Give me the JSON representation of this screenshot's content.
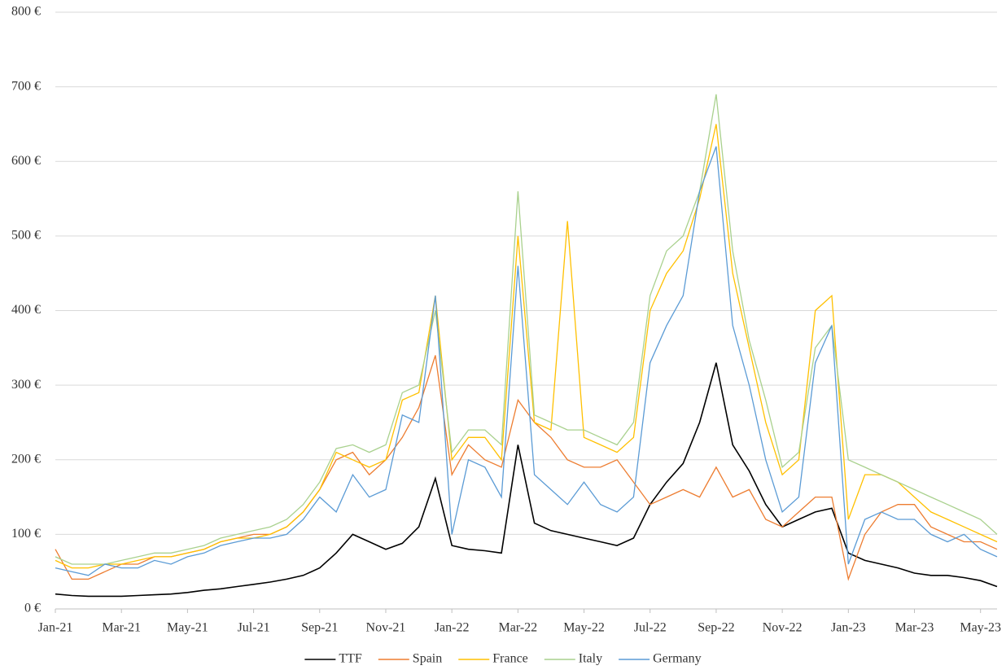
{
  "chart_data": {
    "type": "line",
    "categories": [
      "Jan-21",
      null,
      null,
      null,
      "Mar-21",
      null,
      null,
      null,
      "May-21",
      null,
      null,
      null,
      "Jul-21",
      null,
      null,
      null,
      "Sep-21",
      null,
      null,
      null,
      "Nov-21",
      null,
      null,
      null,
      "Jan-22",
      null,
      null,
      null,
      "Mar-22",
      null,
      null,
      null,
      "May-22",
      null,
      null,
      null,
      "Jul-22",
      null,
      null,
      null,
      "Sep-22",
      null,
      null,
      null,
      "Nov-22",
      null,
      null,
      null,
      "Jan-23",
      null,
      null,
      null,
      "Mar-23",
      null,
      null,
      null,
      "May-23",
      null
    ],
    "series": [
      {
        "name": "TTF",
        "color": "#000000",
        "values": [
          20,
          18,
          17,
          17,
          17,
          18,
          19,
          20,
          22,
          25,
          27,
          30,
          33,
          36,
          40,
          45,
          55,
          75,
          100,
          90,
          80,
          88,
          110,
          175,
          85,
          80,
          78,
          75,
          220,
          115,
          105,
          100,
          95,
          90,
          85,
          95,
          140,
          170,
          195,
          250,
          330,
          220,
          185,
          140,
          110,
          120,
          130,
          135,
          75,
          65,
          60,
          55,
          48,
          45,
          45,
          42,
          38,
          30
        ]
      },
      {
        "name": "Spain",
        "color": "#ed7d31",
        "values": [
          80,
          40,
          40,
          50,
          60,
          60,
          70,
          70,
          75,
          80,
          90,
          95,
          100,
          100,
          110,
          130,
          160,
          200,
          210,
          180,
          200,
          230,
          270,
          340,
          180,
          220,
          200,
          190,
          280,
          250,
          230,
          200,
          190,
          190,
          200,
          170,
          140,
          150,
          160,
          150,
          190,
          150,
          160,
          120,
          110,
          130,
          150,
          150,
          40,
          100,
          130,
          140,
          140,
          110,
          100,
          90,
          90,
          80
        ]
      },
      {
        "name": "France",
        "color": "#ffc000",
        "values": [
          65,
          55,
          55,
          60,
          60,
          65,
          70,
          70,
          75,
          80,
          90,
          95,
          95,
          100,
          110,
          130,
          160,
          210,
          200,
          190,
          200,
          280,
          290,
          420,
          200,
          230,
          230,
          200,
          500,
          250,
          240,
          520,
          230,
          220,
          210,
          230,
          400,
          450,
          480,
          550,
          650,
          450,
          350,
          250,
          180,
          200,
          400,
          420,
          120,
          180,
          180,
          170,
          150,
          130,
          120,
          110,
          100,
          90
        ]
      },
      {
        "name": "Italy",
        "color": "#a9d18e",
        "values": [
          70,
          60,
          60,
          60,
          65,
          70,
          75,
          75,
          80,
          85,
          95,
          100,
          105,
          110,
          120,
          140,
          170,
          215,
          220,
          210,
          220,
          290,
          300,
          400,
          210,
          240,
          240,
          220,
          560,
          260,
          250,
          240,
          240,
          230,
          220,
          250,
          420,
          480,
          500,
          560,
          690,
          480,
          360,
          280,
          190,
          210,
          350,
          380,
          200,
          190,
          180,
          170,
          160,
          150,
          140,
          130,
          120,
          100
        ]
      },
      {
        "name": "Germany",
        "color": "#5b9bd5",
        "values": [
          55,
          50,
          45,
          60,
          55,
          55,
          65,
          60,
          70,
          75,
          85,
          90,
          95,
          95,
          100,
          120,
          150,
          130,
          180,
          150,
          160,
          260,
          250,
          420,
          100,
          200,
          190,
          150,
          460,
          180,
          160,
          140,
          170,
          140,
          130,
          150,
          330,
          380,
          420,
          560,
          620,
          380,
          300,
          200,
          130,
          150,
          330,
          380,
          60,
          120,
          130,
          120,
          120,
          100,
          90,
          100,
          80,
          70
        ]
      }
    ],
    "ylim": [
      0,
      800
    ],
    "yticks": [
      {
        "value": 0,
        "label": "0 €"
      },
      {
        "value": 100,
        "label": "100 €"
      },
      {
        "value": 200,
        "label": "200 €"
      },
      {
        "value": 300,
        "label": "300 €"
      },
      {
        "value": 400,
        "label": "400 €"
      },
      {
        "value": 500,
        "label": "500 €"
      },
      {
        "value": 600,
        "label": "600 €"
      },
      {
        "value": 700,
        "label": "700 €"
      },
      {
        "value": 800,
        "label": "800 €"
      }
    ],
    "grid": true,
    "legend": "bottom"
  }
}
